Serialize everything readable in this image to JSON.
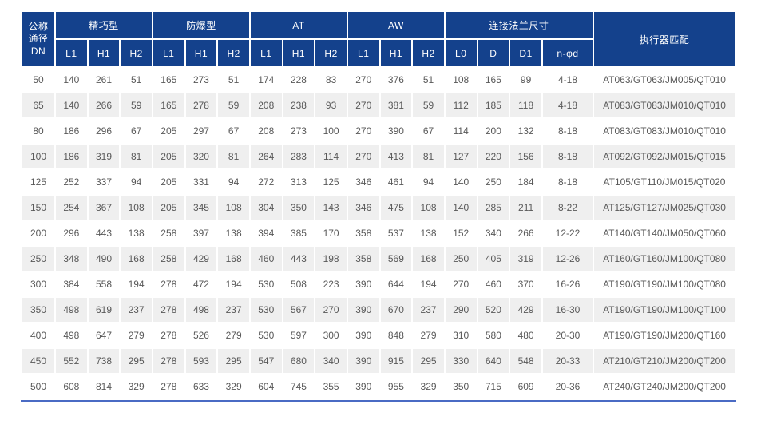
{
  "table": {
    "corner_header": "公称\n通径\nDN",
    "groups": [
      {
        "label": "精巧型",
        "cols": [
          "L1",
          "H1",
          "H2"
        ]
      },
      {
        "label": "防爆型",
        "cols": [
          "L1",
          "H1",
          "H2"
        ]
      },
      {
        "label": "AT",
        "cols": [
          "L1",
          "H1",
          "H2"
        ]
      },
      {
        "label": "AW",
        "cols": [
          "L1",
          "H1",
          "H2"
        ]
      },
      {
        "label": "连接法兰尺寸",
        "cols": [
          "L0",
          "D",
          "D1",
          "n-φd"
        ]
      }
    ],
    "actuator_header": "执行器匹配",
    "rows": [
      {
        "dn": "50",
        "values": [
          "140",
          "261",
          "51",
          "165",
          "273",
          "51",
          "174",
          "228",
          "83",
          "270",
          "376",
          "51",
          "108",
          "165",
          "99",
          "4-18"
        ],
        "actuator": "AT063/GT063/JM005/QT010"
      },
      {
        "dn": "65",
        "values": [
          "140",
          "266",
          "59",
          "165",
          "278",
          "59",
          "208",
          "238",
          "93",
          "270",
          "381",
          "59",
          "112",
          "185",
          "118",
          "4-18"
        ],
        "actuator": "AT083/GT083/JM010/QT010"
      },
      {
        "dn": "80",
        "values": [
          "186",
          "296",
          "67",
          "205",
          "297",
          "67",
          "208",
          "273",
          "100",
          "270",
          "390",
          "67",
          "114",
          "200",
          "132",
          "8-18"
        ],
        "actuator": "AT083/GT083/JM010/QT010"
      },
      {
        "dn": "100",
        "values": [
          "186",
          "319",
          "81",
          "205",
          "320",
          "81",
          "264",
          "283",
          "114",
          "270",
          "413",
          "81",
          "127",
          "220",
          "156",
          "8-18"
        ],
        "actuator": "AT092/GT092/JM015/QT015"
      },
      {
        "dn": "125",
        "values": [
          "252",
          "337",
          "94",
          "205",
          "331",
          "94",
          "272",
          "313",
          "125",
          "346",
          "461",
          "94",
          "140",
          "250",
          "184",
          "8-18"
        ],
        "actuator": "AT105/GT110/JM015/QT020"
      },
      {
        "dn": "150",
        "values": [
          "254",
          "367",
          "108",
          "205",
          "345",
          "108",
          "304",
          "350",
          "143",
          "346",
          "475",
          "108",
          "140",
          "285",
          "211",
          "8-22"
        ],
        "actuator": "AT125/GT127/JM025/QT030"
      },
      {
        "dn": "200",
        "values": [
          "296",
          "443",
          "138",
          "258",
          "397",
          "138",
          "394",
          "385",
          "170",
          "358",
          "537",
          "138",
          "152",
          "340",
          "266",
          "12-22"
        ],
        "actuator": "AT140/GT140/JM050/QT060"
      },
      {
        "dn": "250",
        "values": [
          "348",
          "490",
          "168",
          "258",
          "429",
          "168",
          "460",
          "443",
          "198",
          "358",
          "569",
          "168",
          "250",
          "405",
          "319",
          "12-26"
        ],
        "actuator": "AT160/GT160/JM100/QT080"
      },
      {
        "dn": "300",
        "values": [
          "384",
          "558",
          "194",
          "278",
          "472",
          "194",
          "530",
          "508",
          "223",
          "390",
          "644",
          "194",
          "270",
          "460",
          "370",
          "16-26"
        ],
        "actuator": "AT190/GT190/JM100/QT080"
      },
      {
        "dn": "350",
        "values": [
          "498",
          "619",
          "237",
          "278",
          "498",
          "237",
          "530",
          "567",
          "270",
          "390",
          "670",
          "237",
          "290",
          "520",
          "429",
          "16-30"
        ],
        "actuator": "AT190/GT190/JM100/QT100"
      },
      {
        "dn": "400",
        "values": [
          "498",
          "647",
          "279",
          "278",
          "526",
          "279",
          "530",
          "597",
          "300",
          "390",
          "848",
          "279",
          "310",
          "580",
          "480",
          "20-30"
        ],
        "actuator": "AT190/GT190/JM200/QT160"
      },
      {
        "dn": "450",
        "values": [
          "552",
          "738",
          "295",
          "278",
          "593",
          "295",
          "547",
          "680",
          "340",
          "390",
          "915",
          "295",
          "330",
          "640",
          "548",
          "20-33"
        ],
        "actuator": "AT210/GT210/JM200/QT200"
      },
      {
        "dn": "500",
        "values": [
          "608",
          "814",
          "329",
          "278",
          "633",
          "329",
          "604",
          "745",
          "355",
          "390",
          "955",
          "329",
          "350",
          "715",
          "609",
          "20-36"
        ],
        "actuator": "AT240/GT240/JM200/QT200"
      }
    ]
  },
  "colors": {
    "header_bg": "#14418c",
    "header_text": "#ffffff",
    "stripe_bg": "#efefef",
    "body_text": "#595959",
    "bottom_rule": "#4a6bc4"
  }
}
